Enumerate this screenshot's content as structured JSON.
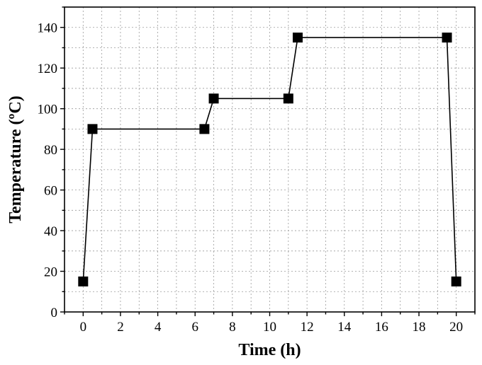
{
  "chart_data": {
    "type": "line",
    "xlabel": "Time (h)",
    "ylabel": "Temperature (ºC)",
    "xlim": [
      -1,
      21
    ],
    "ylim": [
      0,
      150
    ],
    "xticks": [
      0,
      2,
      4,
      6,
      8,
      10,
      12,
      14,
      16,
      18,
      20
    ],
    "yticks": [
      0,
      20,
      40,
      60,
      80,
      100,
      120,
      140
    ],
    "grid": true,
    "legend": "none",
    "marker": "square",
    "color": "#000000",
    "series": [
      {
        "x": [
          0,
          0.5,
          6.5,
          7,
          11,
          11.5,
          19.5,
          20
        ],
        "y": [
          15,
          90,
          90,
          105,
          105,
          135,
          135,
          15
        ]
      }
    ]
  }
}
